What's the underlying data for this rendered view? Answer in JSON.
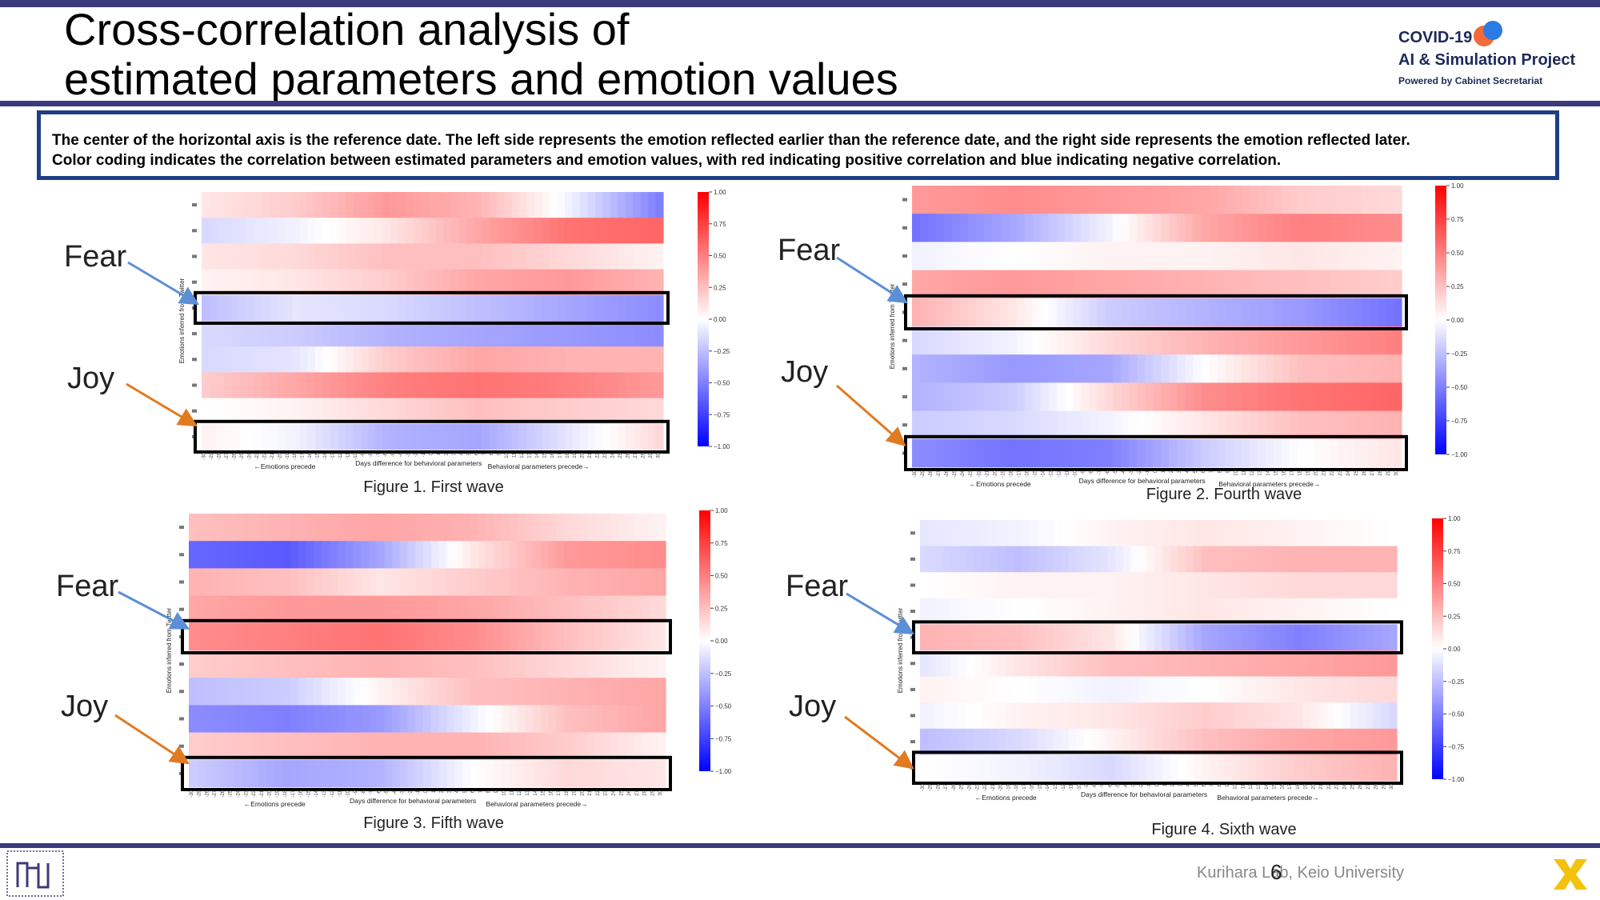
{
  "title": "Cross-correlation analysis of\nestimated parameters and emotion values",
  "logo": {
    "line1": "COVID-19",
    "line2": "AI & Simulation Project",
    "line3": "Powered by Cabinet Secretariat"
  },
  "note": {
    "line1": "The center of the horizontal axis is the reference date. The left side represents the emotion reflected earlier than the reference date, and the right side represents the emotion reflected later.",
    "line2": "Color coding indicates the correlation between estimated parameters and emotion values, with red indicating positive correlation and blue indicating negative correlation."
  },
  "labels": {
    "fear": "Fear",
    "joy": "Joy"
  },
  "footer": {
    "lab": "Kurihara Lab, Keio University",
    "page": "6"
  },
  "colors": {
    "accent": "#3b3a7c",
    "box": "#1c3f86",
    "arrow_fear": "#5b8fd6",
    "arrow_joy": "#e07b22",
    "positive": "#ff0000",
    "negative": "#0000ff"
  },
  "chart_data": [
    {
      "type": "heatmap",
      "caption": "Figure 1. First wave",
      "xlabel_left": "←Emotions precede",
      "xlabel_center": "Days difference for behavioral parameters",
      "xlabel_right": "Behavioral parameters precede→",
      "ylabel": "Emotions inferred from Twitter",
      "x_range": [
        -30,
        30
      ],
      "colorbar_ticks": [
        "1.00",
        "0.75",
        "0.50",
        "0.25",
        "0.00",
        "−0.25",
        "−0.50",
        "−0.75",
        "−1.00"
      ],
      "rows": [
        {
          "corr_by_lag_anchor": [
            0.1,
            0.2,
            0.4,
            0.3,
            -0.05,
            -0.5
          ]
        },
        {
          "corr_by_lag_anchor": [
            -0.15,
            -0.05,
            0.1,
            0.35,
            0.55,
            0.6
          ]
        },
        {
          "corr_by_lag_anchor": [
            0.1,
            0.15,
            0.25,
            0.25,
            0.15,
            0.05
          ]
        },
        {
          "corr_by_lag_anchor": [
            0.05,
            0.1,
            0.2,
            0.35,
            0.4,
            0.3
          ]
        },
        {
          "corr_by_lag_anchor": [
            -0.25,
            -0.1,
            -0.15,
            -0.25,
            -0.35,
            -0.45
          ]
        },
        {
          "corr_by_lag_anchor": [
            -0.15,
            -0.2,
            -0.3,
            -0.35,
            -0.4,
            -0.45
          ]
        },
        {
          "corr_by_lag_anchor": [
            -0.15,
            -0.1,
            0.2,
            0.35,
            0.3,
            0.3
          ]
        },
        {
          "corr_by_lag_anchor": [
            0.2,
            0.35,
            0.5,
            0.55,
            0.5,
            0.4
          ]
        },
        {
          "corr_by_lag_anchor": [
            0.0,
            0.05,
            0.15,
            0.25,
            0.2,
            0.15
          ]
        },
        {
          "corr_by_lag_anchor": [
            0.05,
            -0.05,
            -0.3,
            -0.35,
            -0.1,
            0.15
          ]
        }
      ],
      "highlight_rows": {
        "fear": 4,
        "joy": 9
      }
    },
    {
      "type": "heatmap",
      "caption": "Figure 2. Fourth wave",
      "xlabel_left": "←Emotions precede",
      "xlabel_center": "Days difference for behavioral parameters",
      "xlabel_right": "Behavioral parameters precede→",
      "ylabel": "Emotions inferred from Twitter",
      "x_range": [
        -30,
        30
      ],
      "colorbar_ticks": [
        "1.00",
        "0.75",
        "0.50",
        "0.25",
        "0.00",
        "−0.25",
        "−0.50",
        "−0.75",
        "−1.00"
      ],
      "rows": [
        {
          "corr_by_lag_anchor": [
            0.4,
            0.45,
            0.4,
            0.35,
            0.2,
            0.15
          ]
        },
        {
          "corr_by_lag_anchor": [
            -0.55,
            -0.35,
            -0.05,
            0.35,
            0.5,
            0.45
          ]
        },
        {
          "corr_by_lag_anchor": [
            -0.05,
            0.0,
            0.05,
            0.05,
            0.1,
            0.05
          ]
        },
        {
          "corr_by_lag_anchor": [
            0.35,
            0.4,
            0.35,
            0.3,
            0.25,
            0.2
          ]
        },
        {
          "corr_by_lag_anchor": [
            0.3,
            0.1,
            -0.2,
            -0.3,
            -0.4,
            -0.55
          ]
        },
        {
          "corr_by_lag_anchor": [
            -0.15,
            -0.05,
            0.15,
            0.3,
            0.4,
            0.5
          ]
        },
        {
          "corr_by_lag_anchor": [
            -0.3,
            -0.4,
            -0.35,
            0.0,
            0.25,
            0.3
          ]
        },
        {
          "corr_by_lag_anchor": [
            -0.3,
            -0.2,
            0.15,
            0.45,
            0.55,
            0.6
          ]
        },
        {
          "corr_by_lag_anchor": [
            -0.2,
            -0.15,
            -0.05,
            0.1,
            0.25,
            0.3
          ]
        },
        {
          "corr_by_lag_anchor": [
            -0.45,
            -0.55,
            -0.5,
            -0.2,
            0.0,
            0.1
          ]
        }
      ],
      "highlight_rows": {
        "fear": 4,
        "joy": 9
      }
    },
    {
      "type": "heatmap",
      "caption": "Figure 3. Fifth wave",
      "xlabel_left": "←Emotions precede",
      "xlabel_center": "Days difference for behavioral parameters",
      "xlabel_right": "Behavioral parameters precede→",
      "ylabel": "Emotions inferred from Twitter",
      "x_range": [
        -30,
        30
      ],
      "colorbar_ticks": [
        "1.00",
        "0.75",
        "0.50",
        "0.25",
        "0.00",
        "−0.25",
        "−0.50",
        "−0.75",
        "−1.00"
      ],
      "rows": [
        {
          "corr_by_lag_anchor": [
            0.25,
            0.3,
            0.35,
            0.3,
            0.15,
            0.05
          ]
        },
        {
          "corr_by_lag_anchor": [
            -0.6,
            -0.65,
            -0.35,
            0.1,
            0.4,
            0.45
          ]
        },
        {
          "corr_by_lag_anchor": [
            0.3,
            0.25,
            0.1,
            0.2,
            0.3,
            0.35
          ]
        },
        {
          "corr_by_lag_anchor": [
            0.35,
            0.4,
            0.4,
            0.35,
            0.25,
            0.15
          ]
        },
        {
          "corr_by_lag_anchor": [
            0.45,
            0.5,
            0.55,
            0.45,
            0.25,
            0.1
          ]
        },
        {
          "corr_by_lag_anchor": [
            0.2,
            0.25,
            0.3,
            0.25,
            0.15,
            0.05
          ]
        },
        {
          "corr_by_lag_anchor": [
            -0.25,
            -0.2,
            0.05,
            0.25,
            0.3,
            0.35
          ]
        },
        {
          "corr_by_lag_anchor": [
            -0.45,
            -0.5,
            -0.4,
            -0.05,
            0.25,
            0.35
          ]
        },
        {
          "corr_by_lag_anchor": [
            0.2,
            0.25,
            0.3,
            0.3,
            0.2,
            0.05
          ]
        },
        {
          "corr_by_lag_anchor": [
            -0.2,
            -0.35,
            -0.3,
            0.0,
            0.15,
            0.1
          ]
        }
      ],
      "highlight_rows": {
        "fear": 4,
        "joy": 9
      }
    },
    {
      "type": "heatmap",
      "caption": "Figure 4. Sixth wave",
      "xlabel_left": "←Emotions precede",
      "xlabel_center": "Days difference for behavioral parameters",
      "xlabel_right": "Behavioral parameters precede→",
      "ylabel": "Emotions inferred from Twitter",
      "x_range": [
        -30,
        30
      ],
      "colorbar_ticks": [
        "1.00",
        "0.75",
        "0.50",
        "0.25",
        "0.00",
        "−0.25",
        "−0.50",
        "−0.75",
        "−1.00"
      ],
      "rows": [
        {
          "corr_by_lag_anchor": [
            -0.1,
            -0.05,
            0.05,
            0.1,
            0.05,
            0.0
          ]
        },
        {
          "corr_by_lag_anchor": [
            -0.15,
            -0.25,
            -0.1,
            0.25,
            0.3,
            0.3
          ]
        },
        {
          "corr_by_lag_anchor": [
            0.0,
            0.05,
            0.05,
            0.1,
            0.15,
            0.15
          ]
        },
        {
          "corr_by_lag_anchor": [
            -0.05,
            0.0,
            0.05,
            0.1,
            0.05,
            0.0
          ]
        },
        {
          "corr_by_lag_anchor": [
            0.3,
            0.25,
            0.1,
            -0.35,
            -0.5,
            -0.35
          ]
        },
        {
          "corr_by_lag_anchor": [
            -0.1,
            0.1,
            0.25,
            0.3,
            0.35,
            0.4
          ]
        },
        {
          "corr_by_lag_anchor": [
            0.05,
            0.0,
            -0.05,
            0.0,
            0.1,
            0.15
          ]
        },
        {
          "corr_by_lag_anchor": [
            -0.05,
            0.05,
            0.1,
            0.2,
            0.1,
            -0.15
          ]
        },
        {
          "corr_by_lag_anchor": [
            -0.25,
            -0.15,
            0.05,
            0.25,
            0.35,
            0.4
          ]
        },
        {
          "corr_by_lag_anchor": [
            0.0,
            -0.05,
            -0.15,
            0.05,
            0.2,
            0.3
          ]
        }
      ],
      "highlight_rows": {
        "fear": 4,
        "joy": 9
      }
    }
  ]
}
